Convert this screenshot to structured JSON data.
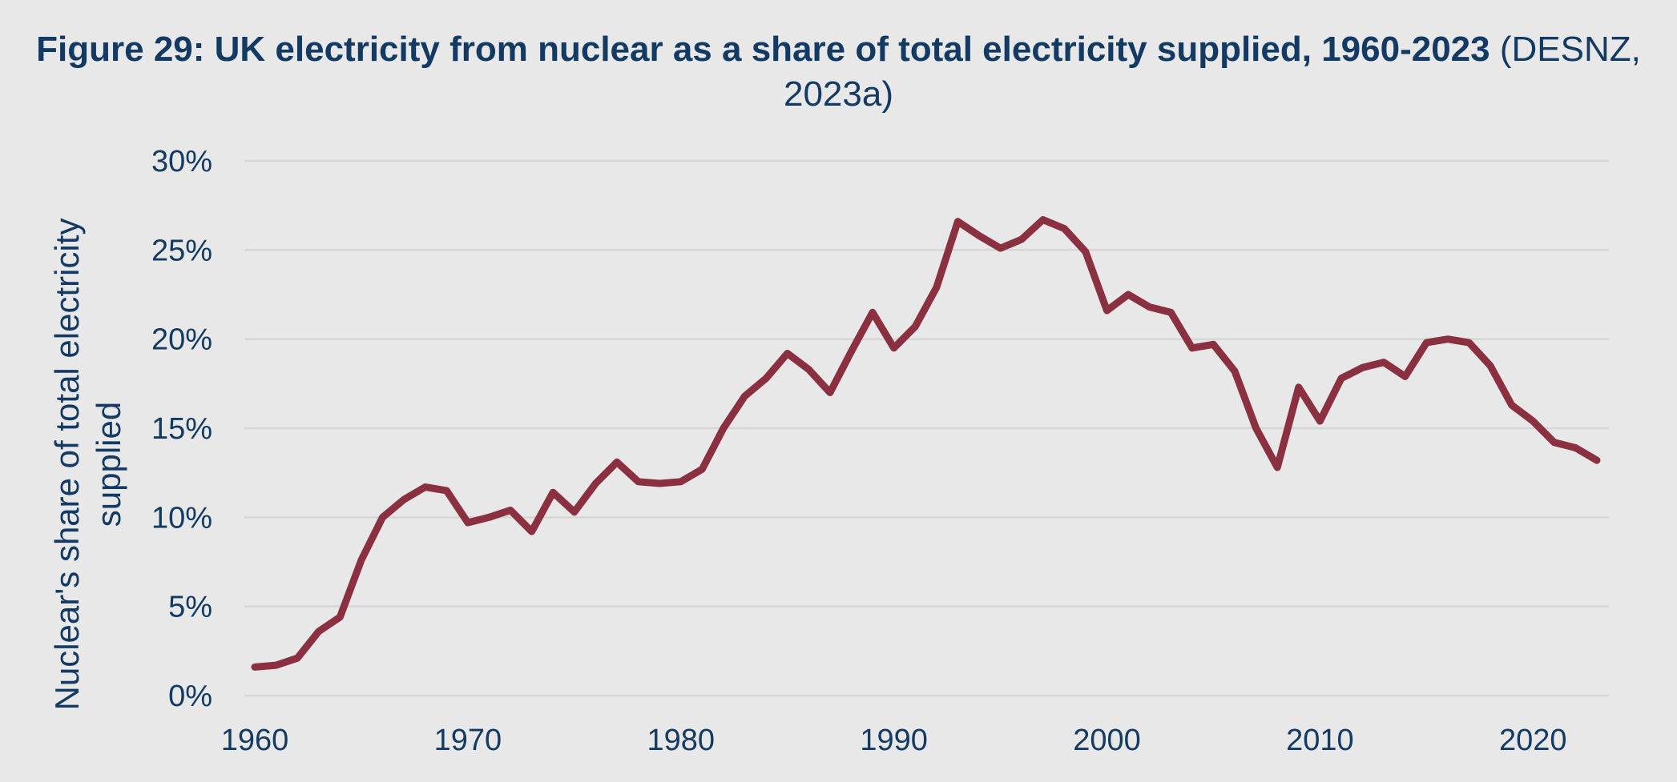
{
  "chart_data": {
    "type": "line",
    "title": "Figure 29: UK electricity from nuclear as a share of total electricity supplied, 1960-2023",
    "title_source": "(DESNZ, 2023a)",
    "xlabel": "",
    "ylabel": "Nuclear's share of total electricity supplied",
    "ylabel_lines": [
      "Nuclear's share of total electricity",
      "supplied"
    ],
    "xlim": [
      1960,
      2023
    ],
    "ylim": [
      0,
      30
    ],
    "x_ticks": [
      1960,
      1970,
      1980,
      1990,
      2000,
      2010,
      2020
    ],
    "x_tick_labels": [
      "1960",
      "1970",
      "1980",
      "1990",
      "2000",
      "2010",
      "2020"
    ],
    "y_ticks": [
      0,
      5,
      10,
      15,
      20,
      25,
      30
    ],
    "y_tick_labels": [
      "0%",
      "5%",
      "10%",
      "15%",
      "20%",
      "25%",
      "30%"
    ],
    "grid": "horizontal",
    "legend": "none",
    "series": [
      {
        "name": "Nuclear share of electricity supplied (%)",
        "color": "#8b3040",
        "x": [
          1960,
          1961,
          1962,
          1963,
          1964,
          1965,
          1966,
          1967,
          1968,
          1969,
          1970,
          1971,
          1972,
          1973,
          1974,
          1975,
          1976,
          1977,
          1978,
          1979,
          1980,
          1981,
          1982,
          1983,
          1984,
          1985,
          1986,
          1987,
          1988,
          1989,
          1990,
          1991,
          1992,
          1993,
          1994,
          1995,
          1996,
          1997,
          1998,
          1999,
          2000,
          2001,
          2002,
          2003,
          2004,
          2005,
          2006,
          2007,
          2008,
          2009,
          2010,
          2011,
          2012,
          2013,
          2014,
          2015,
          2016,
          2017,
          2018,
          2019,
          2020,
          2021,
          2022,
          2023
        ],
        "values": [
          1.6,
          1.7,
          2.1,
          3.6,
          4.4,
          7.6,
          10.0,
          11.0,
          11.7,
          11.5,
          9.7,
          10.0,
          10.4,
          9.2,
          11.4,
          10.3,
          11.9,
          13.1,
          12.0,
          11.9,
          12.0,
          12.7,
          15.0,
          16.8,
          17.8,
          19.2,
          18.3,
          17.0,
          19.3,
          21.5,
          19.5,
          20.7,
          22.9,
          26.6,
          25.8,
          25.1,
          25.6,
          26.7,
          26.2,
          24.9,
          21.6,
          22.5,
          21.8,
          21.5,
          19.5,
          19.7,
          18.2,
          15.0,
          12.8,
          17.3,
          15.4,
          17.8,
          18.4,
          18.7,
          17.9,
          19.8,
          20.0,
          19.8,
          18.5,
          16.3,
          15.4,
          14.2,
          13.9,
          13.2
        ]
      }
    ]
  }
}
